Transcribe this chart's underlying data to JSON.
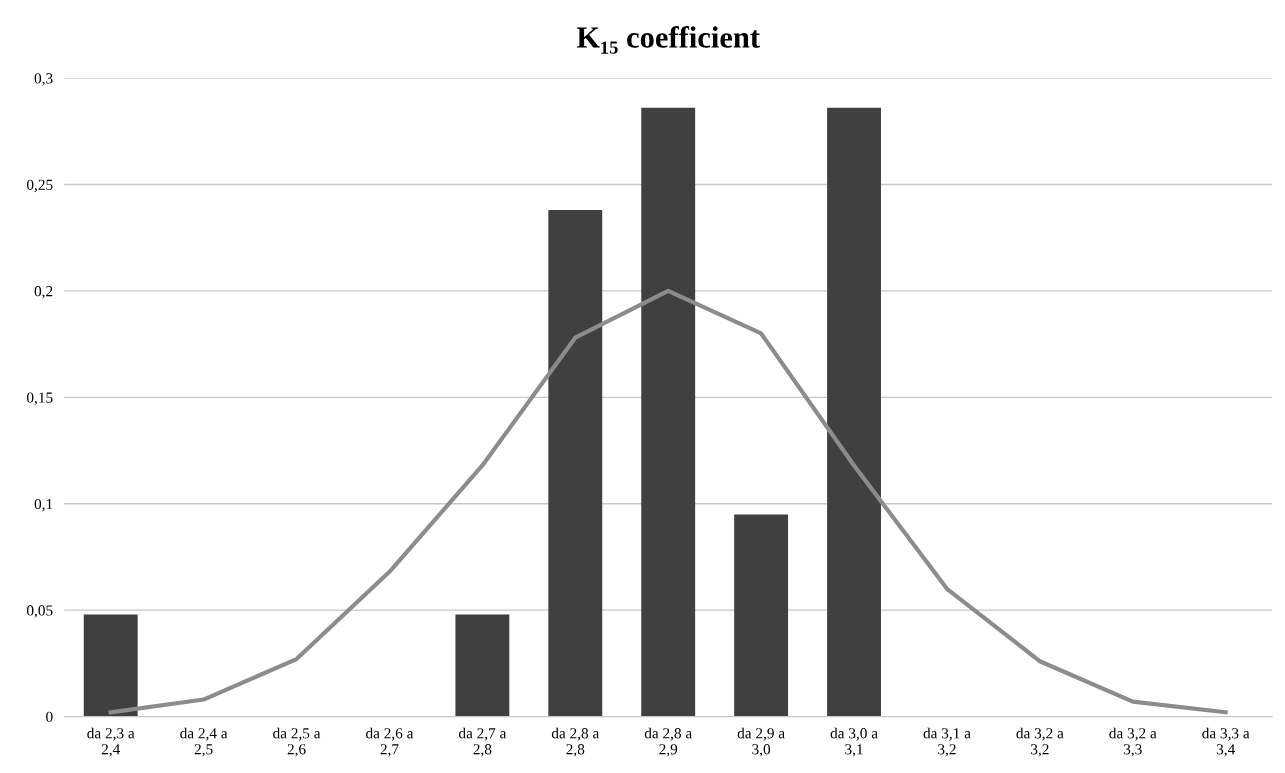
{
  "chart_data": {
    "type": "bar",
    "title": "K₁₅ coefficient",
    "categories": [
      "da 2,3 a\n2,4",
      "da 2,4 a\n2,5",
      "da 2,5 a\n2,6",
      "da 2,6 a\n2,7",
      "da 2,7 a\n2,8",
      "da 2,8 a\n2,8",
      "da 2,8 a\n2,9",
      "da 2,9 a\n3,0",
      "da 3,0 a\n3,1",
      "da 3,1 a\n3,2",
      "da 3,2 a\n3,2",
      "da 3,2 a\n3,3",
      "da 3,3 a\n3,4"
    ],
    "series": [
      {
        "color": "#404040",
        "values": [
          0.048,
          0,
          0,
          0,
          0.048,
          0.238,
          0.286,
          0.095,
          0.286,
          0,
          0,
          0,
          0
        ]
      },
      {
        "type": "line",
        "color": "#8c8c8c",
        "values": [
          0.002,
          0.008,
          0.027,
          0.068,
          0.118,
          0.178,
          0.2,
          0.18,
          0.118,
          0.06,
          0.026,
          0.007,
          0.002
        ]
      }
    ],
    "ylim": [
      0,
      0.3
    ],
    "yticks": [
      0,
      {
        "value": 0.05,
        "label": "0,05"
      },
      {
        "value": 0.1,
        "label": "0,1"
      },
      {
        "value": 0.15,
        "label": "0,15"
      },
      {
        "value": 0.2,
        "label": "0,2"
      },
      {
        "value": 0.25,
        "label": "0,25"
      },
      {
        "value": 0.3,
        "label": "0,3"
      }
    ],
    "grid": "y",
    "marker": "none",
    "line_style": "solid"
  }
}
